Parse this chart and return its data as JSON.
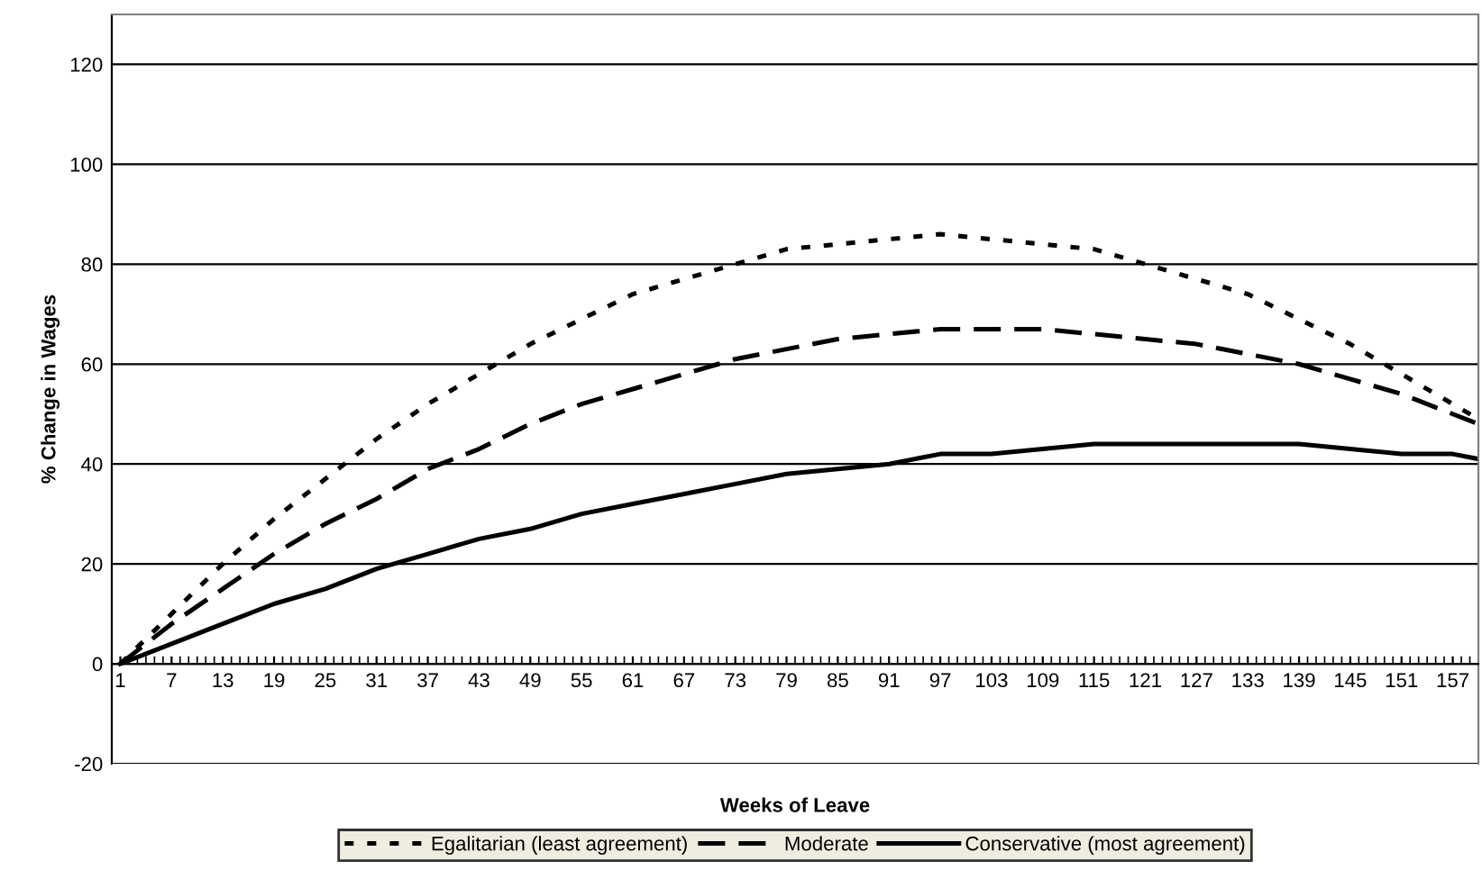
{
  "chart_data": {
    "type": "line",
    "xlabel": "Weeks of Leave",
    "ylabel": "% Change in Wages",
    "x": [
      1,
      7,
      13,
      19,
      25,
      31,
      37,
      43,
      49,
      55,
      61,
      67,
      73,
      79,
      85,
      91,
      97,
      103,
      109,
      115,
      121,
      127,
      133,
      139,
      145,
      151,
      157,
      160
    ],
    "xlim": [
      0,
      160
    ],
    "xticks": [
      1,
      7,
      13,
      19,
      25,
      31,
      37,
      43,
      49,
      55,
      61,
      67,
      73,
      79,
      85,
      91,
      97,
      103,
      109,
      115,
      121,
      127,
      133,
      139,
      145,
      151,
      157
    ],
    "ylim": [
      -20,
      130
    ],
    "yticks": [
      -20,
      0,
      20,
      40,
      60,
      80,
      100,
      120
    ],
    "grid": "y",
    "legend": "bottom",
    "marker": "none",
    "series": [
      {
        "name": "Egalitarian (least agreement)",
        "color": "#000000",
        "line_style": "dotted",
        "values": [
          0,
          10,
          20,
          29,
          37,
          45,
          52,
          58,
          64,
          69,
          74,
          77,
          80,
          83,
          84,
          85,
          86,
          85,
          84,
          83,
          80,
          77,
          74,
          69,
          64,
          58,
          52,
          49
        ]
      },
      {
        "name": "Moderate",
        "color": "#000000",
        "line_style": "dashed",
        "values": [
          0,
          8,
          15,
          22,
          28,
          33,
          39,
          43,
          48,
          52,
          55,
          58,
          61,
          63,
          65,
          66,
          67,
          67,
          67,
          66,
          65,
          64,
          62,
          60,
          57,
          54,
          50,
          48
        ]
      },
      {
        "name": "Conservative (most agreement)",
        "color": "#000000",
        "line_style": "solid",
        "values": [
          0,
          4,
          8,
          12,
          15,
          19,
          22,
          25,
          27,
          30,
          32,
          34,
          36,
          38,
          39,
          40,
          42,
          42,
          43,
          44,
          44,
          44,
          44,
          44,
          43,
          42,
          42,
          41
        ]
      }
    ]
  }
}
